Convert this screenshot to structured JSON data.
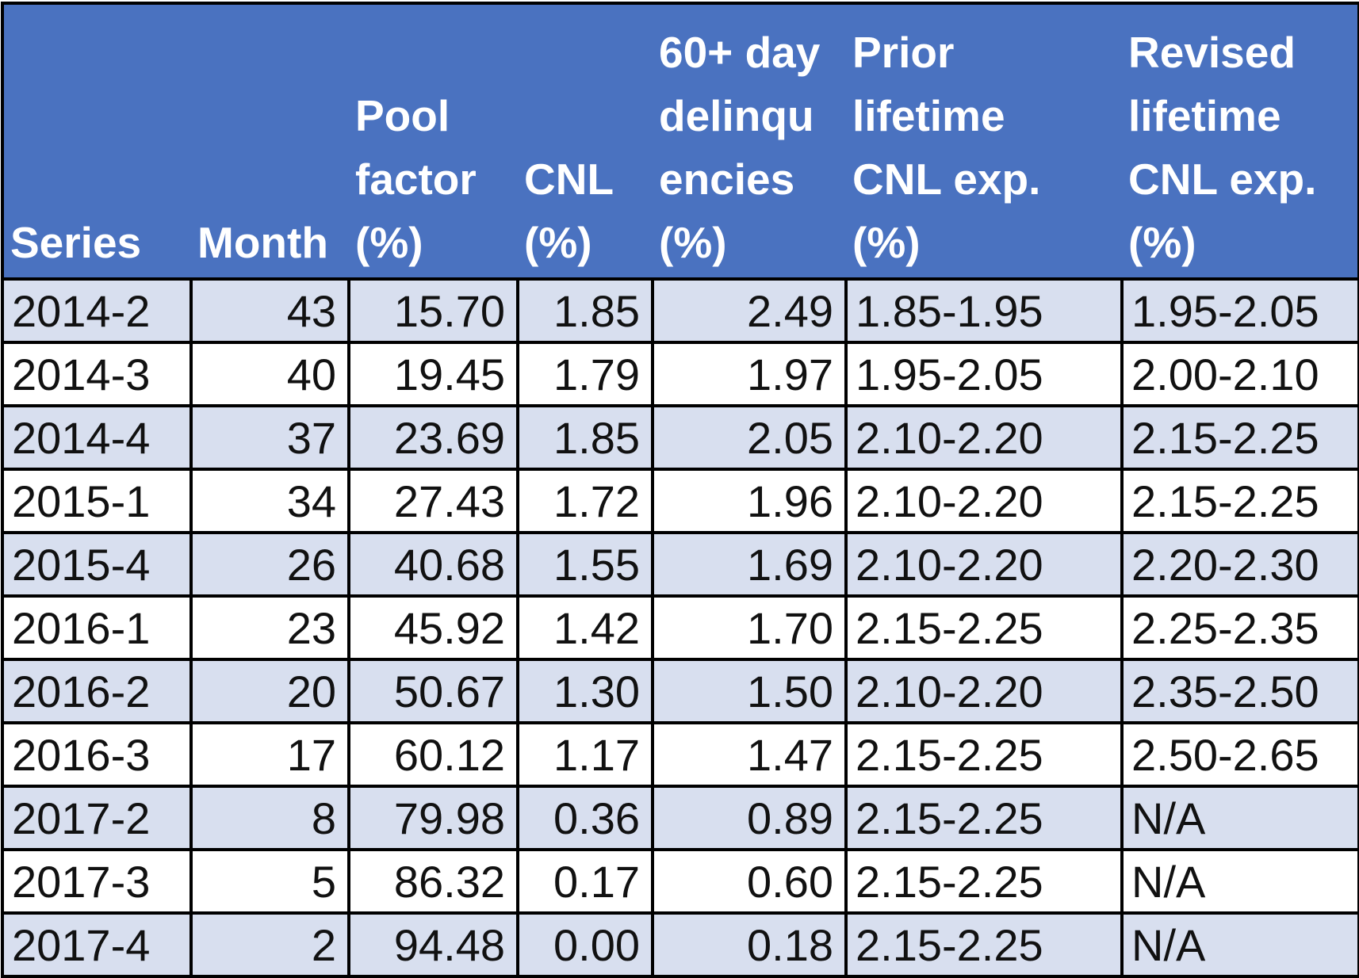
{
  "table": {
    "headers": [
      [
        "Series"
      ],
      [
        "Month"
      ],
      [
        "Pool",
        "factor",
        "(%)"
      ],
      [
        "CNL",
        "(%)"
      ],
      [
        "60+ day",
        "delinqu",
        "encies",
        "(%)"
      ],
      [
        "Prior",
        "lifetime",
        "CNL exp.",
        "(%)"
      ],
      [
        "Revised",
        "lifetime",
        "CNL exp.",
        "(%)"
      ]
    ],
    "rows": [
      [
        "2014-2",
        "43",
        "15.70",
        "1.85",
        "2.49",
        "1.85-1.95",
        "1.95-2.05"
      ],
      [
        "2014-3",
        "40",
        "19.45",
        "1.79",
        "1.97",
        "1.95-2.05",
        "2.00-2.10"
      ],
      [
        "2014-4",
        "37",
        "23.69",
        "1.85",
        "2.05",
        "2.10-2.20",
        "2.15-2.25"
      ],
      [
        "2015-1",
        "34",
        "27.43",
        "1.72",
        "1.96",
        "2.10-2.20",
        "2.15-2.25"
      ],
      [
        "2015-4",
        "26",
        "40.68",
        "1.55",
        "1.69",
        "2.10-2.20",
        "2.20-2.30"
      ],
      [
        "2016-1",
        "23",
        "45.92",
        "1.42",
        "1.70",
        "2.15-2.25",
        "2.25-2.35"
      ],
      [
        "2016-2",
        "20",
        "50.67",
        "1.30",
        "1.50",
        "2.10-2.20",
        "2.35-2.50"
      ],
      [
        "2016-3",
        "17",
        "60.12",
        "1.17",
        "1.47",
        "2.15-2.25",
        "2.50-2.65"
      ],
      [
        "2017-2",
        "8",
        "79.98",
        "0.36",
        "0.89",
        "2.15-2.25",
        "N/A"
      ],
      [
        "2017-3",
        "5",
        "86.32",
        "0.17",
        "0.60",
        "2.15-2.25",
        "N/A"
      ],
      [
        "2017-4",
        "2",
        "94.48",
        "0.00",
        "0.18",
        "2.15-2.25",
        "N/A"
      ]
    ]
  },
  "colors": {
    "header_bg": "#4a72c0",
    "header_text": "#ffffff",
    "row_band": "#d8dfef",
    "row_plain": "#ffffff",
    "border": "#000000"
  }
}
